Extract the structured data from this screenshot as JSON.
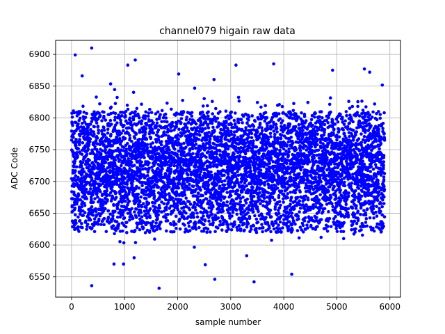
{
  "chart_data": {
    "type": "scatter",
    "title": "channel079 higain raw data",
    "xlabel": "sample number",
    "ylabel": "ADC Code",
    "xlim": [
      -300,
      6200
    ],
    "ylim": [
      6518,
      6922
    ],
    "xticks": [
      0,
      1000,
      2000,
      3000,
      4000,
      5000,
      6000
    ],
    "yticks": [
      6550,
      6600,
      6650,
      6700,
      6750,
      6800,
      6850,
      6900
    ],
    "grid": true,
    "marker_color": "#0000ff",
    "series": [
      {
        "num_samples": 5900,
        "x_range": [
          0,
          5900
        ],
        "bulk_range": [
          6620,
          6810
        ],
        "center": 6725,
        "outliers": [
          {
            "x": 70,
            "y": 6899
          },
          {
            "x": 200,
            "y": 6866
          },
          {
            "x": 380,
            "y": 6910
          },
          {
            "x": 1060,
            "y": 6883
          },
          {
            "x": 1200,
            "y": 6891
          },
          {
            "x": 2020,
            "y": 6869
          },
          {
            "x": 3100,
            "y": 6883
          },
          {
            "x": 3810,
            "y": 6885
          },
          {
            "x": 4920,
            "y": 6875
          },
          {
            "x": 5520,
            "y": 6877
          },
          {
            "x": 5620,
            "y": 6872
          },
          {
            "x": 380,
            "y": 6536
          },
          {
            "x": 1650,
            "y": 6532
          },
          {
            "x": 2700,
            "y": 6546
          },
          {
            "x": 3440,
            "y": 6542
          },
          {
            "x": 4150,
            "y": 6554
          },
          {
            "x": 800,
            "y": 6570
          },
          {
            "x": 980,
            "y": 6570
          },
          {
            "x": 2520,
            "y": 6569
          },
          {
            "x": 1180,
            "y": 6580
          }
        ]
      }
    ]
  }
}
